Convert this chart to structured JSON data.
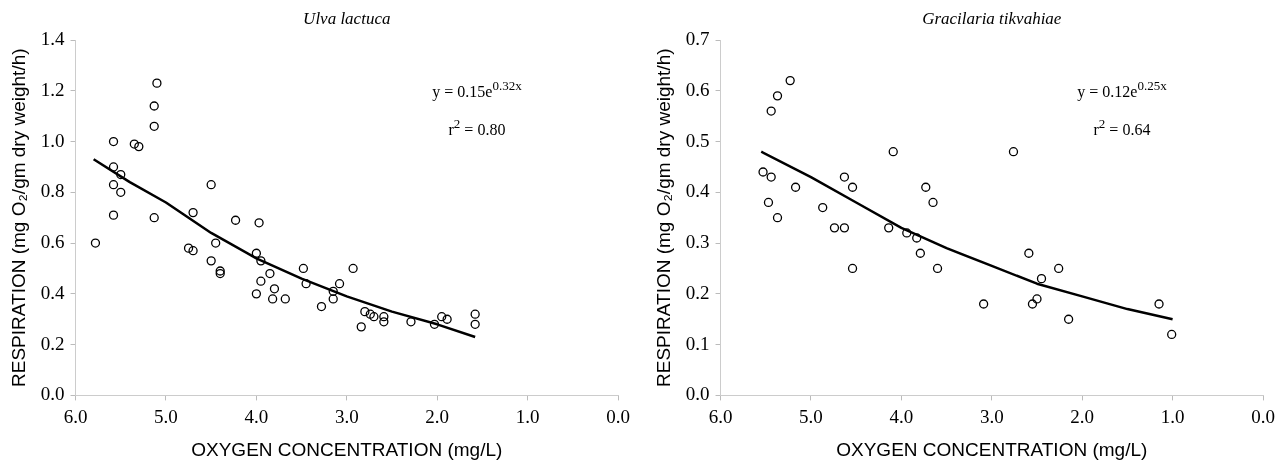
{
  "chart_data": [
    {
      "type": "scatter",
      "title": "Ulva lactuca",
      "xlabel": "OXYGEN CONCENTRATION (mg/L)",
      "ylabel": "RESPIRATION (mg O₂/gm dry weight/h)",
      "xlim": [
        6,
        0
      ],
      "xticks": [
        {
          "value": 6,
          "label": "6.0"
        },
        {
          "value": 5,
          "label": "5.0"
        },
        {
          "value": 4,
          "label": "4.0"
        },
        {
          "value": 3,
          "label": "3.0"
        },
        {
          "value": 2,
          "label": "2.0"
        },
        {
          "value": 1,
          "label": "1.0"
        },
        {
          "value": 0,
          "label": "0.0"
        }
      ],
      "ylim": [
        0,
        1.4
      ],
      "yticks": [
        {
          "value": 0,
          "label": "0.0"
        },
        {
          "value": 0.2,
          "label": "0.2"
        },
        {
          "value": 0.4,
          "label": "0.4"
        },
        {
          "value": 0.6,
          "label": "0.6"
        },
        {
          "value": 0.8,
          "label": "0.8"
        },
        {
          "value": 1,
          "label": "1.0"
        },
        {
          "value": 1.2,
          "label": "1.2"
        },
        {
          "value": 1.4,
          "label": "1.4"
        }
      ],
      "grid": false,
      "legend": false,
      "marker": "circle",
      "annotations": [
        "y = 0.15e$^{0.32x}$",
        "r$^{2}$ = 0.80"
      ],
      "series": [
        {
          "color": "#000000",
          "x": [
            5.78,
            5.58,
            5.58,
            5.58,
            5.58,
            5.5,
            5.5,
            5.35,
            5.3,
            5.13,
            5.13,
            5.1,
            5.13,
            4.75,
            4.7,
            4.7,
            4.5,
            4.5,
            4.45,
            4.4,
            4.4,
            4.23,
            4.0,
            3.97,
            3.95,
            3.95,
            4.0,
            3.85,
            3.82,
            3.8,
            3.68,
            3.48,
            3.45,
            3.28,
            3.15,
            3.15,
            3.08,
            2.93,
            2.8,
            2.84,
            2.74,
            2.7,
            2.59,
            2.59,
            2.29,
            2.03,
            1.95,
            1.89,
            1.58,
            1.58
          ],
          "values": [
            0.6,
            1.0,
            0.9,
            0.83,
            0.71,
            0.87,
            0.8,
            0.99,
            0.98,
            1.14,
            1.06,
            1.23,
            0.7,
            0.58,
            0.57,
            0.72,
            0.83,
            0.53,
            0.6,
            0.48,
            0.49,
            0.69,
            0.56,
            0.68,
            0.53,
            0.45,
            0.4,
            0.48,
            0.38,
            0.42,
            0.38,
            0.5,
            0.44,
            0.35,
            0.41,
            0.38,
            0.44,
            0.5,
            0.33,
            0.27,
            0.32,
            0.31,
            0.31,
            0.29,
            0.29,
            0.28,
            0.31,
            0.3,
            0.32,
            0.28
          ]
        },
        {
          "type": "line",
          "color": "#000000",
          "marker": "none",
          "x": [
            5.8,
            5.4,
            5.0,
            4.5,
            4.0,
            3.5,
            3.0,
            2.5,
            2.0,
            1.58
          ],
          "values": [
            0.93,
            0.84,
            0.76,
            0.64,
            0.54,
            0.46,
            0.39,
            0.33,
            0.28,
            0.23
          ]
        }
      ]
    },
    {
      "type": "scatter",
      "title": "Gracilaria tikvahiae",
      "xlabel": "OXYGEN CONCENTRATION (mg/L)",
      "ylabel": "RESPIRATION (mg O₂/gm dry weight/h)",
      "xlim": [
        6,
        0
      ],
      "xticks": [
        {
          "value": 6,
          "label": "6.0"
        },
        {
          "value": 5,
          "label": "5.0"
        },
        {
          "value": 4,
          "label": "4.0"
        },
        {
          "value": 3,
          "label": "3.0"
        },
        {
          "value": 2,
          "label": "2.0"
        },
        {
          "value": 1,
          "label": "1.0"
        },
        {
          "value": 0,
          "label": "0.0"
        }
      ],
      "ylim": [
        0,
        0.7
      ],
      "yticks": [
        {
          "value": 0,
          "label": "0.0"
        },
        0.1,
        0.2,
        0.3,
        0.4,
        0.5,
        0.6,
        0.7
      ],
      "grid": false,
      "legend": false,
      "marker": "circle",
      "annotations": [
        "y = 0.12e$^{0.25x}$",
        "r$^{2}$ = 0.64"
      ],
      "series": [
        {
          "color": "#000000",
          "x": [
            5.53,
            5.44,
            5.47,
            5.37,
            5.44,
            5.37,
            5.23,
            5.17,
            4.87,
            4.74,
            4.63,
            4.63,
            4.54,
            4.54,
            4.14,
            4.09,
            3.94,
            3.83,
            3.79,
            3.73,
            3.65,
            3.6,
            3.09,
            2.76,
            2.59,
            2.45,
            2.26,
            2.5,
            2.55,
            2.15,
            1.15,
            1.01
          ],
          "values": [
            0.44,
            0.43,
            0.38,
            0.35,
            0.56,
            0.59,
            0.62,
            0.41,
            0.37,
            0.33,
            0.33,
            0.43,
            0.41,
            0.25,
            0.33,
            0.48,
            0.32,
            0.31,
            0.28,
            0.41,
            0.38,
            0.25,
            0.18,
            0.48,
            0.28,
            0.23,
            0.25,
            0.19,
            0.18,
            0.15,
            0.18,
            0.12
          ]
        },
        {
          "type": "line",
          "color": "#000000",
          "marker": "none",
          "x": [
            5.55,
            5.0,
            4.5,
            4.0,
            3.5,
            3.0,
            2.5,
            2.0,
            1.5,
            1.0
          ],
          "values": [
            0.48,
            0.43,
            0.38,
            0.33,
            0.29,
            0.255,
            0.22,
            0.195,
            0.17,
            0.15
          ]
        }
      ]
    }
  ]
}
